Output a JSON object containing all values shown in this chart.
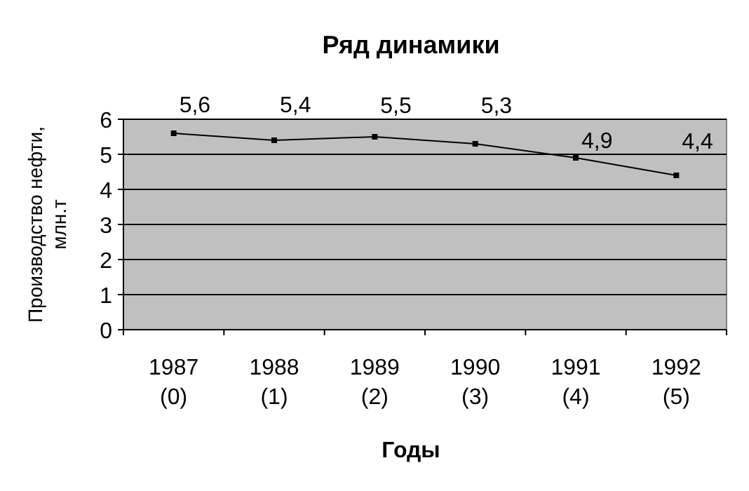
{
  "chart_data": {
    "type": "line",
    "title": "Ряд динамики",
    "xlabel": "Годы",
    "ylabel": "Производство нефти,\nмлн.т",
    "categories": [
      "1987\n(0)",
      "1988\n(1)",
      "1989\n(2)",
      "1990\n(3)",
      "1991\n(4)",
      "1992\n(5)"
    ],
    "series": [
      {
        "color": "#000000",
        "values": [
          5.6,
          5.4,
          5.5,
          5.3,
          4.9,
          4.4
        ],
        "value_labels": [
          "5,6",
          "5,4",
          "5,5",
          "5,3",
          "4,9",
          "4,4"
        ]
      }
    ],
    "ylim": [
      0,
      6
    ],
    "yticks": [
      0,
      1,
      2,
      3,
      4,
      5,
      6
    ],
    "grid": "y",
    "marker": "square",
    "line_style": "solid"
  }
}
